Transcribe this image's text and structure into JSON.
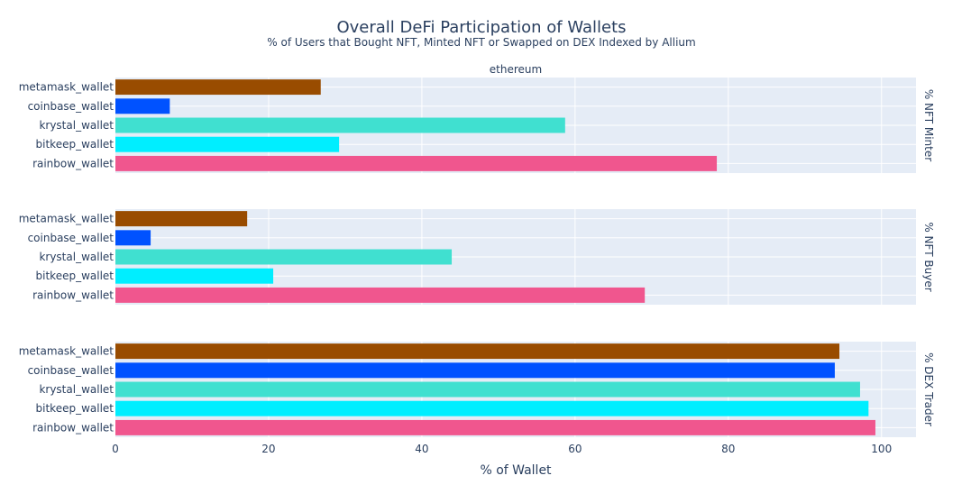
{
  "chart_data": {
    "type": "bar",
    "orientation": "horizontal",
    "title": "Overall DeFi Participation of Wallets",
    "subtitle": "% of Users that Bought NFT, Minted NFT or Swapped on DEX Indexed by Allium",
    "column_facet": "ethereum",
    "xlabel": "% of Wallet",
    "xlim": [
      0,
      104.5
    ],
    "xticks": [
      0,
      20,
      40,
      60,
      80,
      100
    ],
    "categories": [
      "metamask_wallet",
      "coinbase_wallet",
      "krystal_wallet",
      "bitkeep_wallet",
      "rainbow_wallet"
    ],
    "colors": {
      "metamask_wallet": "#994c00",
      "coinbase_wallet": "#0052ff",
      "krystal_wallet": "#40e0d0",
      "bitkeep_wallet": "#00eeff",
      "rainbow_wallet": "#f0568e"
    },
    "panels": [
      {
        "name": "% NFT Minter",
        "values": [
          26.8,
          7.1,
          58.7,
          29.2,
          78.5
        ]
      },
      {
        "name": "% NFT Buyer",
        "values": [
          17.2,
          4.6,
          43.9,
          20.6,
          69.1
        ]
      },
      {
        "name": "% DEX Trader",
        "values": [
          94.5,
          93.9,
          97.2,
          98.3,
          99.2
        ]
      }
    ],
    "grid": true,
    "background_color": "#e5ecf6"
  }
}
